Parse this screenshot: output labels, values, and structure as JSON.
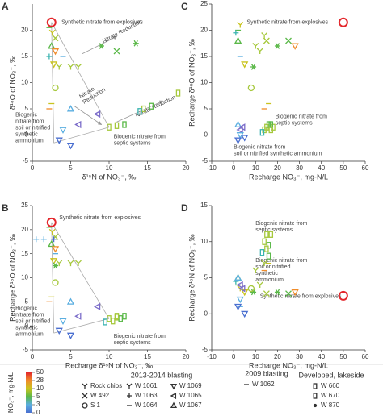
{
  "chart_data": [
    {
      "type": "scatter",
      "label": "A",
      "xlabel": "δ¹⁵N of NO₃⁻, ‰",
      "ylabel": "δ¹⁸O of NO₃⁻, ‰",
      "xlim": [
        0,
        20
      ],
      "xticks": [
        0,
        5,
        10,
        15,
        20
      ],
      "ylim": [
        -5,
        25
      ],
      "yticks": [
        -5,
        0,
        5,
        10,
        15,
        20
      ],
      "annotations": [
        [
          "Synthetic nitrate from explosives"
        ],
        [
          "Nitrate Reduction"
        ],
        [
          "Nitrate",
          "Reduction"
        ],
        [
          "Nitrate Reduction"
        ],
        [
          "Biogenic",
          "nitrate from",
          "soil or nitrified",
          "synthetic",
          "ammonium"
        ],
        [
          "Biogenic nitrate from",
          "septic systems"
        ]
      ],
      "x": [
        2.5,
        2.2,
        2.6,
        3,
        2.5,
        3,
        2.2,
        2.8,
        3.5,
        5,
        6,
        9,
        11,
        13.5,
        4,
        3,
        2.5,
        2.2,
        5,
        8.5,
        6,
        4,
        3.5,
        5,
        10,
        11,
        12,
        14.5,
        15.5,
        14,
        19
      ],
      "y": [
        21.5,
        20.5,
        19.5,
        18.5,
        17,
        16,
        15,
        13.5,
        13,
        13,
        13,
        17,
        16,
        17.5,
        15,
        9,
        6,
        5,
        5,
        4,
        2,
        1,
        -1,
        -2,
        1.5,
        1.8,
        2,
        5,
        5.5,
        4.5,
        8
      ],
      "colors": [
        "#e3262b",
        "#5ab848",
        "#c9c41e",
        "#a6c83c",
        "#5ab848",
        "#f08c2a",
        "#3bb4b0",
        "#c9c41e",
        "#a6c83c",
        "#a6c83c",
        "#a6c83c",
        "#5ab848",
        "#5ab848",
        "#5ab848",
        "#5aaee0",
        "#a6c83c",
        "#c9c41e",
        "#f08c2a",
        "#5aaee0",
        "#7b6cc9",
        "#7b6cc9",
        "#5aaee0",
        "#4a6fd0",
        "#4a6fd0",
        "#a6c83c",
        "#a6c83c",
        "#5ab848",
        "#a6c83c",
        "#5ab848",
        "#3bb4b0",
        "#a6c83c"
      ],
      "markers": [
        "circle",
        "dash",
        "ycross",
        "x",
        "triangle",
        "tri-down",
        "plus",
        "tri-down",
        "ycross",
        "ycross",
        "ycross",
        "star",
        "x",
        "star",
        "dash",
        "circle",
        "dash",
        "dash",
        "triangle",
        "tri-left",
        "tri-left",
        "tri-down",
        "tri-down",
        "tri-down",
        "square",
        "square",
        "square",
        "square",
        "square",
        "square",
        "square"
      ]
    },
    {
      "type": "scatter",
      "label": "C",
      "xlabel": "Recharge NO₃⁻, mg-N/L",
      "ylabel": "Recharge δ¹⁸O of NO₃⁻, ‰",
      "xlim": [
        -10,
        60
      ],
      "xticks": [
        -10,
        0,
        10,
        20,
        30,
        40,
        50,
        60
      ],
      "ylim": [
        -5,
        25
      ],
      "yticks": [
        -5,
        0,
        5,
        10,
        15,
        20,
        25
      ],
      "annotations": [
        [
          "Synthetic nitrate from explosives"
        ],
        [
          "Biogenic nitrate from",
          "septic systems"
        ],
        [
          "Biogenic nitrate from",
          "soil or nitrified synthetic ammonium"
        ]
      ],
      "x": [
        50,
        2,
        3,
        15,
        2,
        28,
        1,
        5,
        12,
        10,
        14,
        20,
        25,
        9,
        3,
        8,
        16,
        14,
        2,
        3,
        4,
        3,
        2,
        5,
        14,
        15,
        16,
        18,
        17,
        13,
        17
      ],
      "y": [
        21.5,
        20,
        21,
        18,
        18,
        17,
        19.5,
        13.5,
        16,
        17,
        19,
        17,
        18,
        13,
        15,
        9,
        6,
        5,
        2,
        1,
        1.5,
        0,
        -1,
        -0.5,
        1,
        1.5,
        2,
        1.5,
        2,
        0.5,
        1
      ],
      "colors": [
        "#e3262b",
        "#5ab848",
        "#c9c41e",
        "#a6c83c",
        "#5ab848",
        "#f08c2a",
        "#3bb4b0",
        "#c9c41e",
        "#a6c83c",
        "#a6c83c",
        "#a6c83c",
        "#5ab848",
        "#5ab848",
        "#5ab848",
        "#5aaee0",
        "#a6c83c",
        "#c9c41e",
        "#f08c2a",
        "#5aaee0",
        "#7b6cc9",
        "#7b6cc9",
        "#5aaee0",
        "#4a6fd0",
        "#4a6fd0",
        "#a6c83c",
        "#a6c83c",
        "#5ab848",
        "#a6c83c",
        "#5ab848",
        "#3bb4b0",
        "#a6c83c"
      ],
      "markers": [
        "circle",
        "dash",
        "ycross",
        "x",
        "triangle",
        "tri-down",
        "plus",
        "tri-down",
        "ycross",
        "ycross",
        "ycross",
        "star",
        "x",
        "star",
        "dash",
        "circle",
        "dash",
        "dash",
        "triangle",
        "tri-left",
        "tri-left",
        "tri-down",
        "tri-down",
        "tri-down",
        "square",
        "square",
        "square",
        "square",
        "square",
        "square",
        "square"
      ]
    },
    {
      "type": "scatter",
      "label": "B",
      "xlabel": "Recharge δ¹⁵N of NO₃⁻, ‰",
      "ylabel": "Recharge δ¹⁸O of NO₃⁻, ‰",
      "xlim": [
        0,
        20
      ],
      "xticks": [
        0,
        5,
        10,
        15,
        20
      ],
      "ylim": [
        -5,
        25
      ],
      "yticks": [
        -5,
        0,
        5,
        10,
        15,
        20,
        25
      ],
      "annotations": [
        [
          "Synthetic nitrate from explosives"
        ],
        [
          "Biogenic",
          "nitrate from",
          "soil or nitrified",
          "synthetic",
          "ammonium"
        ],
        [
          "Biogenic nitrate from",
          "septic systems"
        ]
      ],
      "x": [
        2.5,
        2.2,
        2.6,
        3,
        2.5,
        3,
        0.5,
        2.8,
        3.5,
        5,
        6,
        2.8,
        1.5,
        3,
        3,
        3,
        2.5,
        2.2,
        5,
        8.5,
        6,
        4,
        3.5,
        5,
        10,
        11,
        12,
        10.5,
        11.5,
        9.5,
        11
      ],
      "y": [
        21.5,
        20.5,
        19.5,
        18.5,
        17,
        16,
        18,
        13.5,
        13,
        13,
        13,
        18,
        18,
        12.5,
        15,
        9,
        6,
        5,
        5,
        4,
        2,
        1,
        -1,
        -2,
        1.5,
        1.8,
        2,
        1,
        1.5,
        0.8,
        2
      ],
      "colors": [
        "#e3262b",
        "#5ab848",
        "#c9c41e",
        "#a6c83c",
        "#5ab848",
        "#f08c2a",
        "#5aaee0",
        "#c9c41e",
        "#a6c83c",
        "#a6c83c",
        "#a6c83c",
        "#4a6fd0",
        "#5aaee0",
        "#5ab848",
        "#5aaee0",
        "#a6c83c",
        "#c9c41e",
        "#f08c2a",
        "#5aaee0",
        "#7b6cc9",
        "#7b6cc9",
        "#5aaee0",
        "#4a6fd0",
        "#4a6fd0",
        "#a6c83c",
        "#a6c83c",
        "#5ab848",
        "#a6c83c",
        "#5ab848",
        "#3bb4b0",
        "#a6c83c"
      ],
      "markers": [
        "circle",
        "dash",
        "ycross",
        "x",
        "triangle",
        "tri-down",
        "plus",
        "tri-down",
        "ycross",
        "ycross",
        "ycross",
        "plus",
        "plus",
        "star",
        "dash",
        "circle",
        "dash",
        "dash",
        "triangle",
        "tri-left",
        "tri-left",
        "tri-down",
        "tri-down",
        "tri-down",
        "square",
        "square",
        "square",
        "square",
        "square",
        "square",
        "square"
      ]
    },
    {
      "type": "scatter",
      "label": "D",
      "xlabel": "Recharge NO₃⁻, mg-N/L",
      "ylabel": "Recharge δ¹⁵N of NO₃⁻, ‰",
      "xlim": [
        -10,
        60
      ],
      "xticks": [
        -10,
        0,
        10,
        20,
        30,
        40,
        50,
        60
      ],
      "ylim": [
        -5,
        15
      ],
      "yticks": [
        -5,
        0,
        5,
        10,
        15
      ],
      "annotations": [
        [
          "Biogenic nitrate from",
          "septic systems"
        ],
        [
          "Biogenic nitrate from",
          "soil or nitrified",
          "synthetic",
          "ammonium"
        ],
        [
          "Synthetic nitrate from explosives"
        ]
      ],
      "x": [
        50,
        2,
        3,
        15,
        2,
        28,
        1,
        5,
        12,
        10,
        14,
        20,
        25,
        9,
        3,
        8,
        16,
        14,
        2,
        3,
        4,
        3,
        2,
        5,
        14,
        15,
        16,
        15,
        16,
        13,
        17
      ],
      "y": [
        2.5,
        4,
        3.5,
        2.8,
        5,
        3,
        4.5,
        3,
        4,
        6,
        7,
        3,
        2.8,
        3,
        1,
        3.5,
        7,
        6,
        5,
        4,
        3.5,
        2,
        1,
        0,
        10,
        11,
        9.5,
        9,
        8,
        8.5,
        11
      ],
      "colors": [
        "#e3262b",
        "#5ab848",
        "#c9c41e",
        "#a6c83c",
        "#5ab848",
        "#f08c2a",
        "#3bb4b0",
        "#c9c41e",
        "#a6c83c",
        "#a6c83c",
        "#a6c83c",
        "#5ab848",
        "#5ab848",
        "#5ab848",
        "#5aaee0",
        "#a6c83c",
        "#c9c41e",
        "#f08c2a",
        "#5aaee0",
        "#7b6cc9",
        "#7b6cc9",
        "#5aaee0",
        "#4a6fd0",
        "#4a6fd0",
        "#a6c83c",
        "#a6c83c",
        "#5ab848",
        "#a6c83c",
        "#5ab848",
        "#3bb4b0",
        "#a6c83c"
      ],
      "markers": [
        "circle",
        "dash",
        "ycross",
        "x",
        "triangle",
        "tri-down",
        "plus",
        "tri-down",
        "ycross",
        "ycross",
        "ycross",
        "star",
        "x",
        "star",
        "dash",
        "circle",
        "dash",
        "dash",
        "triangle",
        "tri-left",
        "tri-left",
        "tri-down",
        "tri-down",
        "tri-down",
        "square",
        "square",
        "square",
        "square",
        "square",
        "square",
        "square"
      ]
    }
  ],
  "legend": {
    "colorbar": {
      "title": "NO₃⁻, mg-N/L",
      "ticks": [
        0,
        3,
        5,
        10,
        28,
        50
      ],
      "colors": [
        "#4a6fd0",
        "#5aaee0",
        "#5ab848",
        "#c9c41e",
        "#f08c2a",
        "#e3262b"
      ]
    },
    "groups": [
      {
        "title": "2013-2014 blasting",
        "entries": [
          {
            "name": "Rock chips",
            "marker": "ycross"
          },
          {
            "name": "W 492",
            "marker": "x"
          },
          {
            "name": "S 1",
            "marker": "circle"
          },
          {
            "name": "W 1061",
            "marker": "ycross"
          },
          {
            "name": "W 1063",
            "marker": "plus"
          },
          {
            "name": "W 1064",
            "marker": "dash"
          },
          {
            "name": "W 1069",
            "marker": "tri-down"
          },
          {
            "name": "W 1065",
            "marker": "tri-left"
          },
          {
            "name": "W 1067",
            "marker": "triangle"
          }
        ]
      },
      {
        "title": "2009 blasting",
        "entries": [
          {
            "name": "W 1062",
            "marker": "dash"
          }
        ]
      },
      {
        "title": "Developed, lakeside",
        "entries": [
          {
            "name": "W 660",
            "marker": "square"
          },
          {
            "name": "W 670",
            "marker": "square"
          },
          {
            "name": "W 870",
            "marker": "dot"
          }
        ]
      }
    ]
  }
}
